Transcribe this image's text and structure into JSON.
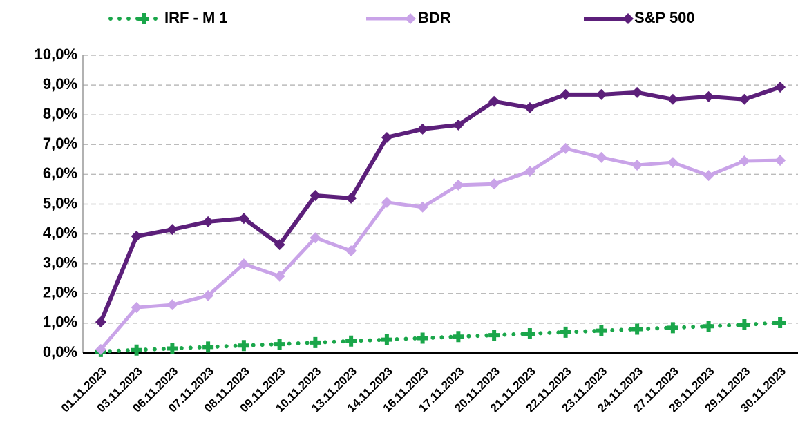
{
  "chart_data": {
    "type": "line",
    "categories": [
      "01.11.2023",
      "03.11.2023",
      "06.11.2023",
      "07.11.2023",
      "08.11.2023",
      "09.11.2023",
      "10.11.2023",
      "13.11.2023",
      "14.11.2023",
      "16.11.2023",
      "17.11.2023",
      "20.11.2023",
      "21.11.2023",
      "22.11.2023",
      "23.11.2023",
      "24.11.2023",
      "27.11.2023",
      "28.11.2023",
      "29.11.2023",
      "30.11.2023"
    ],
    "series": [
      {
        "name": "IRF - M 1",
        "color": "#1aa64a",
        "values": [
          0.05,
          0.1,
          0.15,
          0.2,
          0.25,
          0.3,
          0.35,
          0.4,
          0.45,
          0.5,
          0.55,
          0.6,
          0.65,
          0.7,
          0.75,
          0.8,
          0.85,
          0.9,
          0.95,
          1.02
        ]
      },
      {
        "name": "BDR",
        "color": "#c9a3e8",
        "values": [
          0.12,
          1.53,
          1.62,
          1.93,
          2.99,
          2.58,
          3.87,
          3.43,
          5.06,
          4.9,
          5.64,
          5.68,
          6.1,
          6.87,
          6.57,
          6.31,
          6.4,
          5.96,
          6.45,
          6.47
        ]
      },
      {
        "name": "S&P 500",
        "color": "#5c1f7a",
        "values": [
          1.04,
          3.92,
          4.15,
          4.41,
          4.52,
          3.64,
          5.29,
          5.2,
          7.24,
          7.52,
          7.66,
          8.45,
          8.24,
          8.68,
          8.68,
          8.75,
          8.52,
          8.61,
          8.52,
          8.93
        ]
      }
    ],
    "ylim": [
      0,
      10
    ],
    "yticks": [
      {
        "value": 0,
        "label": "0,0%"
      },
      {
        "value": 1,
        "label": "1,0%"
      },
      {
        "value": 2,
        "label": "2,0%"
      },
      {
        "value": 3,
        "label": "3,0%"
      },
      {
        "value": 4,
        "label": "4,0%"
      },
      {
        "value": 5,
        "label": "5,0%"
      },
      {
        "value": 6,
        "label": "6,0%"
      },
      {
        "value": 7,
        "label": "7,0%"
      },
      {
        "value": 8,
        "label": "8,0%"
      },
      {
        "value": 9,
        "label": "9,0%"
      },
      {
        "value": 10,
        "label": "10,0%"
      }
    ],
    "grid": true,
    "legend": "top"
  }
}
